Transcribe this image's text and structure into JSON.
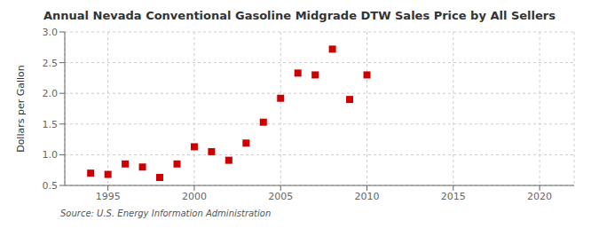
{
  "chart_data": {
    "type": "scatter",
    "title": "Annual Nevada Conventional Gasoline Midgrade DTW Sales Price by All Sellers",
    "ylabel": "Dollars per Gallon",
    "annotations": [
      "Source: U.S. Energy Information Administration"
    ],
    "x": [
      1994,
      1995,
      1996,
      1997,
      1998,
      1999,
      2000,
      2001,
      2002,
      2003,
      2004,
      2005,
      2006,
      2007,
      2008,
      2009,
      2010
    ],
    "values": [
      0.7,
      0.68,
      0.85,
      0.8,
      0.63,
      0.85,
      1.13,
      1.05,
      0.91,
      1.19,
      1.53,
      1.92,
      2.33,
      2.3,
      2.72,
      1.9,
      2.3
    ],
    "color": "#cc0000",
    "marker": "square",
    "xlim": [
      1992.5,
      2022
    ],
    "ylim": [
      0.5,
      3.0
    ],
    "xticks": [
      1995,
      2000,
      2005,
      2010,
      2015,
      2020
    ],
    "yticks": [
      0.5,
      {
        "value": 1.0,
        "label": "1.0"
      },
      1.5,
      {
        "value": 2.0,
        "label": "2.0"
      },
      2.5,
      {
        "value": 3.0,
        "label": "3.0"
      }
    ],
    "grid": true
  }
}
